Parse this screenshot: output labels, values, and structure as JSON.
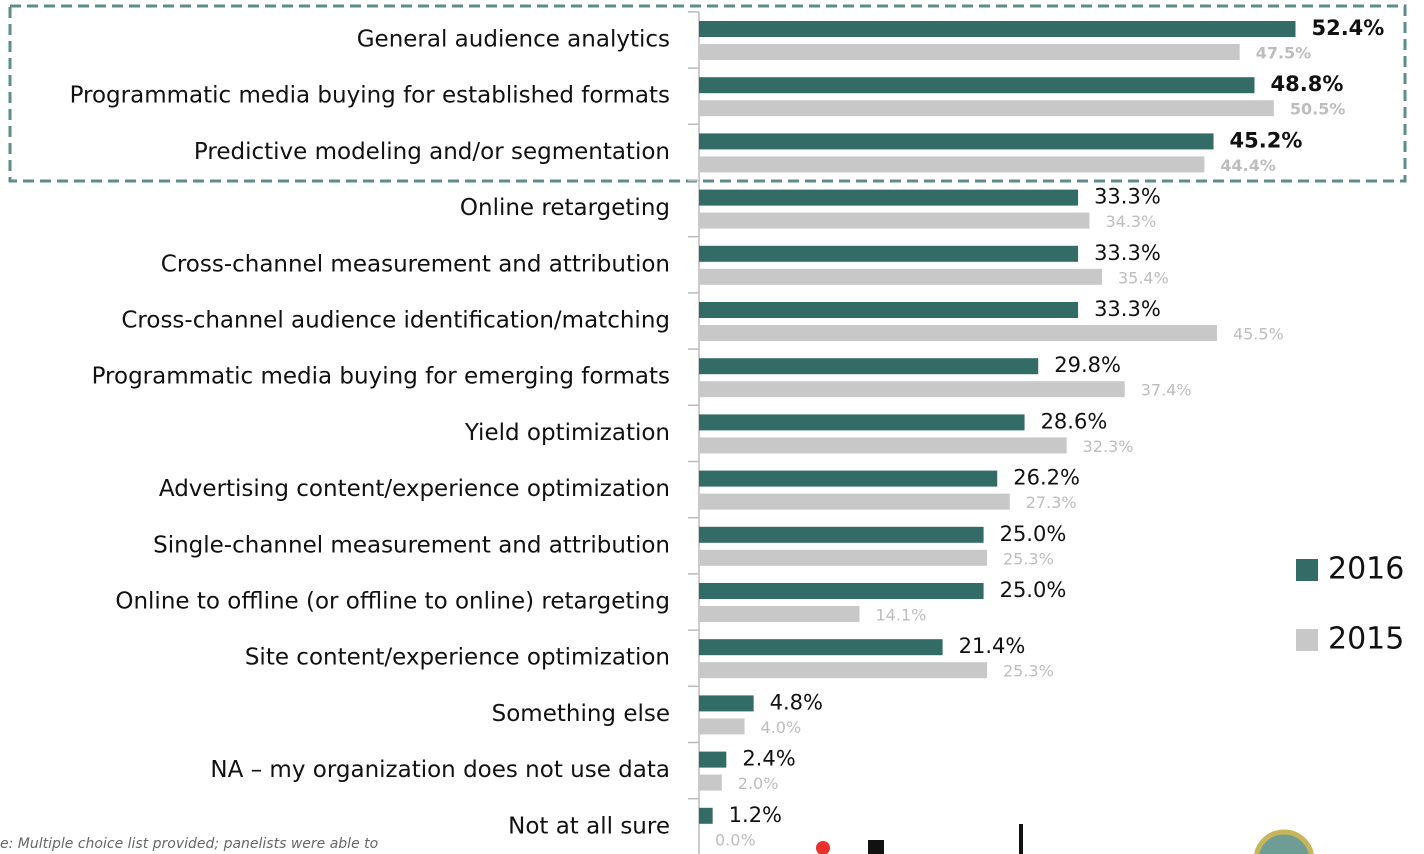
{
  "chart_data": {
    "type": "hbar",
    "categories": [
      "General audience analytics",
      "Programmatic media buying for established formats",
      "Predictive modeling and/or segmentation",
      "Online retargeting",
      "Cross-channel measurement and attribution",
      "Cross-channel audience identification/matching",
      "Programmatic media buying for emerging formats",
      "Yield optimization",
      "Advertising content/experience optimization",
      "Single-channel measurement and attribution",
      "Online to offline (or offline to online) retargeting",
      "Site content/experience optimization",
      "Something else",
      "NA – my organization does not use data",
      "Not at all sure"
    ],
    "series": [
      {
        "name": "2016",
        "color": "#336b66",
        "values": [
          52.4,
          48.8,
          45.2,
          33.3,
          33.3,
          33.3,
          29.8,
          28.6,
          26.2,
          25.0,
          25.0,
          21.4,
          4.8,
          2.4,
          1.2
        ],
        "value_labels": [
          "52.4%",
          "48.8%",
          "45.2%",
          "33.3%",
          "33.3%",
          "33.3%",
          "29.8%",
          "28.6%",
          "26.2%",
          "25.0%",
          "25.0%",
          "21.4%",
          "4.8%",
          "2.4%",
          "1.2%"
        ]
      },
      {
        "name": "2015",
        "color": "#c8c8c8",
        "values": [
          47.5,
          50.5,
          44.4,
          34.3,
          35.4,
          45.5,
          37.4,
          32.3,
          27.3,
          25.3,
          14.1,
          25.3,
          4.0,
          2.0,
          0.0
        ],
        "value_labels": [
          "47.5%",
          "50.5%",
          "44.4%",
          "34.3%",
          "35.4%",
          "45.5%",
          "37.4%",
          "32.3%",
          "27.3%",
          "25.3%",
          "14.1%",
          "25.3%",
          "4.0%",
          "2.0%",
          "0.0%"
        ]
      }
    ],
    "xlim": [
      0,
      60
    ],
    "note": "e: Multiple choice list provided; panelists were able to"
  }
}
